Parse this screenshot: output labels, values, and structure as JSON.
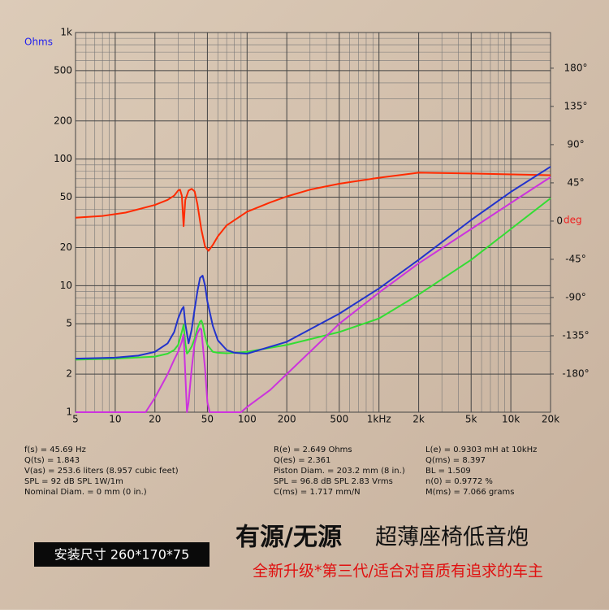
{
  "chart_data": {
    "type": "line",
    "ylabel": "Ohms",
    "y2label": "deg",
    "xlim": [
      5,
      20000
    ],
    "ylim": [
      1,
      1000
    ],
    "y2lim": [
      -225,
      222
    ],
    "xlog": true,
    "ylog": true,
    "grid": true,
    "xticks": [
      5,
      10,
      20,
      50,
      100,
      200,
      500,
      {
        "value": 1000,
        "label": "1kHz"
      },
      {
        "value": 2000,
        "label": "2k"
      },
      {
        "value": 5000,
        "label": "5k"
      },
      {
        "value": 10000,
        "label": "10k"
      },
      {
        "value": 20000,
        "label": "20k"
      }
    ],
    "yticks": [
      1,
      2,
      5,
      10,
      20,
      50,
      100,
      200,
      500,
      {
        "value": 1000,
        "label": "1k"
      }
    ],
    "y2ticks": [
      {
        "value": 180,
        "label": "180°"
      },
      {
        "value": 135,
        "label": "135°"
      },
      {
        "value": 90,
        "label": "90°"
      },
      {
        "value": 45,
        "label": "45°"
      },
      0,
      {
        "value": -45,
        "label": "-45°"
      },
      {
        "value": -90,
        "label": "-90°"
      },
      {
        "value": -135,
        "label": "-135°"
      },
      {
        "value": -180,
        "label": "-180°"
      }
    ],
    "x_minor_grid": [
      6,
      7,
      8,
      9,
      30,
      40,
      60,
      70,
      80,
      90,
      300,
      400,
      600,
      700,
      800,
      900,
      3000,
      4000,
      6000,
      7000,
      8000,
      9000
    ],
    "y_minor_grid": [
      3,
      4,
      6,
      7,
      8,
      9,
      30,
      40,
      60,
      70,
      80,
      90,
      300,
      400,
      600,
      700,
      800,
      900
    ],
    "series": [
      {
        "color": "#ff2a00",
        "axis": "y2",
        "x": [
          5,
          8,
          12,
          20,
          25,
          28,
          30,
          31,
          32,
          33,
          34,
          36,
          38,
          40,
          42,
          45,
          48,
          51,
          55,
          60,
          70,
          100,
          150,
          200,
          300,
          500,
          1000,
          2000,
          5000,
          10000,
          20000
        ],
        "values": [
          4,
          6,
          10,
          19,
          25,
          30,
          36,
          37,
          30,
          -6,
          25,
          36,
          38,
          35,
          20,
          -10,
          -30,
          -35,
          -28,
          -18,
          -5,
          11,
          22,
          29,
          37,
          44,
          51,
          57,
          56,
          55,
          54
        ]
      },
      {
        "color": "#33dd33",
        "x": [
          5,
          10,
          20,
          25,
          28,
          30,
          32,
          33,
          34,
          35,
          36,
          38,
          40,
          42,
          44,
          45,
          46,
          48,
          50,
          55,
          60,
          70,
          100,
          200,
          500,
          1000,
          2000,
          5000,
          10000,
          20000
        ],
        "values": [
          2.6,
          2.65,
          2.75,
          2.9,
          3.1,
          3.4,
          4.3,
          4.9,
          3.5,
          2.9,
          3.0,
          3.3,
          3.8,
          4.6,
          5.2,
          5.3,
          5.0,
          4.0,
          3.4,
          3.0,
          2.95,
          2.92,
          3.0,
          3.4,
          4.3,
          5.5,
          8.5,
          16,
          28,
          49
        ]
      },
      {
        "color": "#2233cc",
        "x": [
          5,
          10,
          15,
          20,
          25,
          28,
          30,
          32,
          33,
          34,
          36,
          38,
          40,
          42,
          44,
          46,
          48,
          50,
          55,
          60,
          70,
          80,
          100,
          200,
          500,
          1000,
          2000,
          5000,
          10000,
          20000
        ],
        "values": [
          2.65,
          2.7,
          2.8,
          3.0,
          3.5,
          4.3,
          5.5,
          6.5,
          6.8,
          5.0,
          3.5,
          4.5,
          6.5,
          9.0,
          11.5,
          12,
          10,
          7.5,
          4.8,
          3.7,
          3.1,
          2.95,
          2.9,
          3.6,
          6.0,
          9.5,
          16,
          33,
          55,
          87
        ]
      },
      {
        "color": "#cc33dd",
        "x": [
          5,
          10,
          17,
          20,
          25,
          28,
          30,
          32,
          33,
          34,
          35,
          36,
          38,
          40,
          42,
          44,
          45,
          46,
          48,
          50,
          52,
          60,
          80,
          90,
          100,
          150,
          200,
          300,
          500,
          1000,
          2000,
          5000,
          10000,
          20000
        ],
        "values": [
          1,
          1,
          1,
          1.3,
          2.0,
          2.6,
          3.0,
          3.6,
          4.1,
          2.0,
          1,
          1.2,
          2.2,
          3.5,
          4.2,
          4.6,
          4.5,
          3.5,
          2.2,
          1.2,
          1,
          1,
          1,
          1,
          1.1,
          1.5,
          2.0,
          3.0,
          5.0,
          8.8,
          15,
          28,
          45,
          72
        ]
      }
    ]
  },
  "specs": [
    [
      "f(s) = 45.69 Hz",
      "Q(ts) = 1.843",
      "V(as) = 253.6 liters  (8.957 cubic feet)",
      "SPL = 92 dB SPL 1W/1m",
      "Nominal Diam. = 0 mm (0 in.)"
    ],
    [
      "R(e) = 2.649 Ohms",
      "Q(es) = 2.361",
      "Piston Diam. = 203.2 mm (8 in.)",
      "SPL = 96.8 dB SPL 2.83 Vrms",
      "C(ms) = 1.717 mm/N"
    ],
    [
      "L(e) = 0.9303 mH at 10kHz",
      "Q(ms) = 8.397",
      "BL = 1.509",
      "n(0) = 0.9772 %",
      "M(ms) = 7.066 grams"
    ]
  ],
  "banner": {
    "title_a": "有源/无源",
    "title_b": "超薄座椅低音炮",
    "subtitle": "全新升级*第三代/适合对音质有追求的车主",
    "size_tag": "安装尺寸  260*170*75"
  }
}
